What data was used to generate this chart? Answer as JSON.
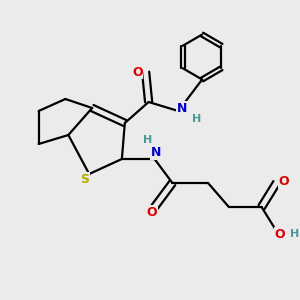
{
  "background_color": "#ebebeb",
  "atom_colors": {
    "C": "#000000",
    "N": "#0000cc",
    "O": "#dd0000",
    "S": "#bbaa00",
    "H": "#4a9999"
  },
  "figsize": [
    3.0,
    3.0
  ],
  "dpi": 100
}
